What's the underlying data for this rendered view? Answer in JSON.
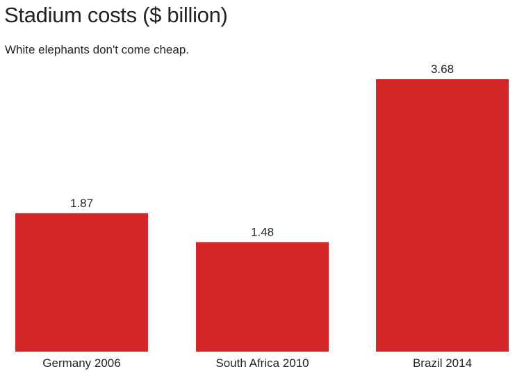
{
  "chart_data": {
    "type": "bar",
    "title": "Stadium costs ($ billion)",
    "subtitle": "White elephants don't come cheap.",
    "categories": [
      "Germany 2006",
      "South Africa 2010",
      "Brazil 2014"
    ],
    "values": [
      1.87,
      1.48,
      3.68
    ],
    "data_labels": [
      "1.87",
      "1.48",
      "3.68"
    ],
    "xlabel": "",
    "ylabel": "",
    "ylim": [
      0,
      3.68
    ],
    "grid": false,
    "bar_color": "#d42527"
  }
}
